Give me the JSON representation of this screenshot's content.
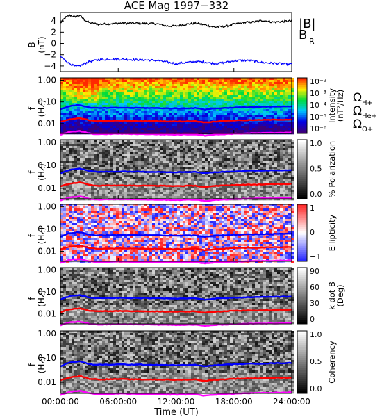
{
  "chart_data": {
    "title": "ACE Mag 1997−332",
    "x_axis": {
      "label": "Time (UT)",
      "ticks": [
        "00:00:00",
        "06:00:00",
        "12:00:00",
        "18:00:00",
        "24:00:00"
      ],
      "range_hours": [
        0,
        24
      ]
    },
    "panels": [
      {
        "type": "line",
        "ylabel": "B",
        "yunit": "(nT)",
        "ylim": [
          -5,
          5.5
        ],
        "yticks": [
          "4",
          "2",
          "0",
          "−2",
          "−4"
        ],
        "ytick_values": [
          4,
          2,
          0,
          -2,
          -4
        ],
        "series": [
          {
            "name": "|B|",
            "color": "#000000",
            "x_hours": [
              0,
              0.5,
              1,
              1.5,
              2,
              2.5,
              3,
              4,
              5,
              6,
              8,
              10,
              11,
              12,
              13,
              14,
              15,
              16,
              17,
              18,
              19,
              20,
              21,
              22,
              23,
              24
            ],
            "values": [
              3.6,
              4.6,
              5.0,
              4.7,
              5.0,
              4.2,
              3.7,
              3.4,
              3.5,
              3.6,
              3.6,
              3.5,
              3.1,
              3.1,
              3.4,
              3.6,
              3.3,
              2.9,
              3.0,
              3.4,
              3.7,
              3.8,
              4.1,
              3.8,
              3.9,
              4.0
            ]
          },
          {
            "name": "B_R",
            "color": "#0000ff",
            "x_hours": [
              0,
              0.5,
              1,
              1.5,
              2,
              2.5,
              3,
              4,
              5,
              6,
              8,
              10,
              11,
              12,
              13,
              14,
              15,
              16,
              17,
              18,
              19,
              20,
              21,
              22,
              23,
              24
            ],
            "values": [
              -2.3,
              -3.0,
              -3.6,
              -4.1,
              -4.0,
              -3.6,
              -3.2,
              -2.9,
              -2.8,
              -2.8,
              -2.9,
              -3.0,
              -3.3,
              -3.6,
              -3.4,
              -3.2,
              -3.3,
              -3.6,
              -3.4,
              -3.1,
              -3.0,
              -3.1,
              -3.4,
              -3.5,
              -3.6,
              -3.7
            ]
          }
        ],
        "legend": [
          {
            "text": "|B|",
            "color": "#000000"
          },
          {
            "text": "B",
            "sub": "R",
            "color": "#0000ff"
          }
        ]
      },
      {
        "type": "heatmap",
        "ylabel": "f",
        "yunit": "(Hz)",
        "yticks": [
          "1.00",
          "0.10",
          "0.01"
        ],
        "colorbar": {
          "label": "Intensity",
          "unit": "(nT²/Hz)",
          "ticks": [
            "10⁻²",
            "10⁻³",
            "10⁻⁴",
            "10⁻⁵",
            "10⁻⁶"
          ],
          "scale": "spectral"
        },
        "legend": [
          {
            "text": "Ω",
            "sub": "H+",
            "color": "#0000ff"
          },
          {
            "text": "Ω",
            "sub": "He+",
            "color": "#ff0000"
          },
          {
            "text": "Ω",
            "sub": "O+",
            "color": "#ff00ff"
          }
        ]
      },
      {
        "type": "heatmap",
        "ylabel": "f",
        "yunit": "(Hz)",
        "yticks": [
          "1.00",
          "0.10",
          "0.01"
        ],
        "colorbar": {
          "label": "% Polarization",
          "unit": "",
          "ticks": [
            "1.0",
            "0.5",
            "0.0"
          ],
          "scale": "gray"
        }
      },
      {
        "type": "heatmap",
        "ylabel": "f",
        "yunit": "(Hz)",
        "yticks": [
          "1.00",
          "0.10",
          "0.01"
        ],
        "colorbar": {
          "label": "Ellipticity",
          "unit": "",
          "ticks": [
            "1",
            "0",
            "−1"
          ],
          "scale": "bwr"
        }
      },
      {
        "type": "heatmap",
        "ylabel": "f",
        "yunit": "(Hz)",
        "yticks": [
          "1.00",
          "0.10",
          "0.01"
        ],
        "colorbar": {
          "label": "k dot B",
          "unit": "(Deg)",
          "ticks": [
            "90",
            "60",
            "30",
            "0"
          ],
          "scale": "gray"
        }
      },
      {
        "type": "heatmap",
        "ylabel": "f",
        "yunit": "(Hz)",
        "yticks": [
          "1.00",
          "0.10",
          "0.01"
        ],
        "colorbar": {
          "label": "Coherency",
          "unit": "",
          "ticks": [
            "1.0",
            "0.5",
            "0.0"
          ],
          "scale": "gray"
        }
      }
    ],
    "gyrofrequency_lines": {
      "x_hours": [
        0,
        1,
        2,
        3,
        4,
        6,
        8,
        10,
        12,
        14,
        15,
        16,
        18,
        20,
        22,
        24
      ],
      "H+": [
        0.045,
        0.065,
        0.072,
        0.055,
        0.052,
        0.054,
        0.053,
        0.052,
        0.05,
        0.052,
        0.045,
        0.05,
        0.055,
        0.058,
        0.06,
        0.062
      ],
      "He+": [
        0.012,
        0.016,
        0.018,
        0.014,
        0.013,
        0.0135,
        0.013,
        0.013,
        0.0125,
        0.013,
        0.0113,
        0.0125,
        0.014,
        0.0145,
        0.015,
        0.0155
      ],
      "O+": [
        0.003,
        0.0041,
        0.0045,
        0.0035,
        0.0032,
        0.0034,
        0.0033,
        0.0032,
        0.0031,
        0.0032,
        0.0028,
        0.0031,
        0.0034,
        0.0036,
        0.0037,
        0.0039
      ]
    },
    "colors": {
      "H+": "#0000ff",
      "He+": "#ff0000",
      "O+": "#ff00ff"
    }
  }
}
